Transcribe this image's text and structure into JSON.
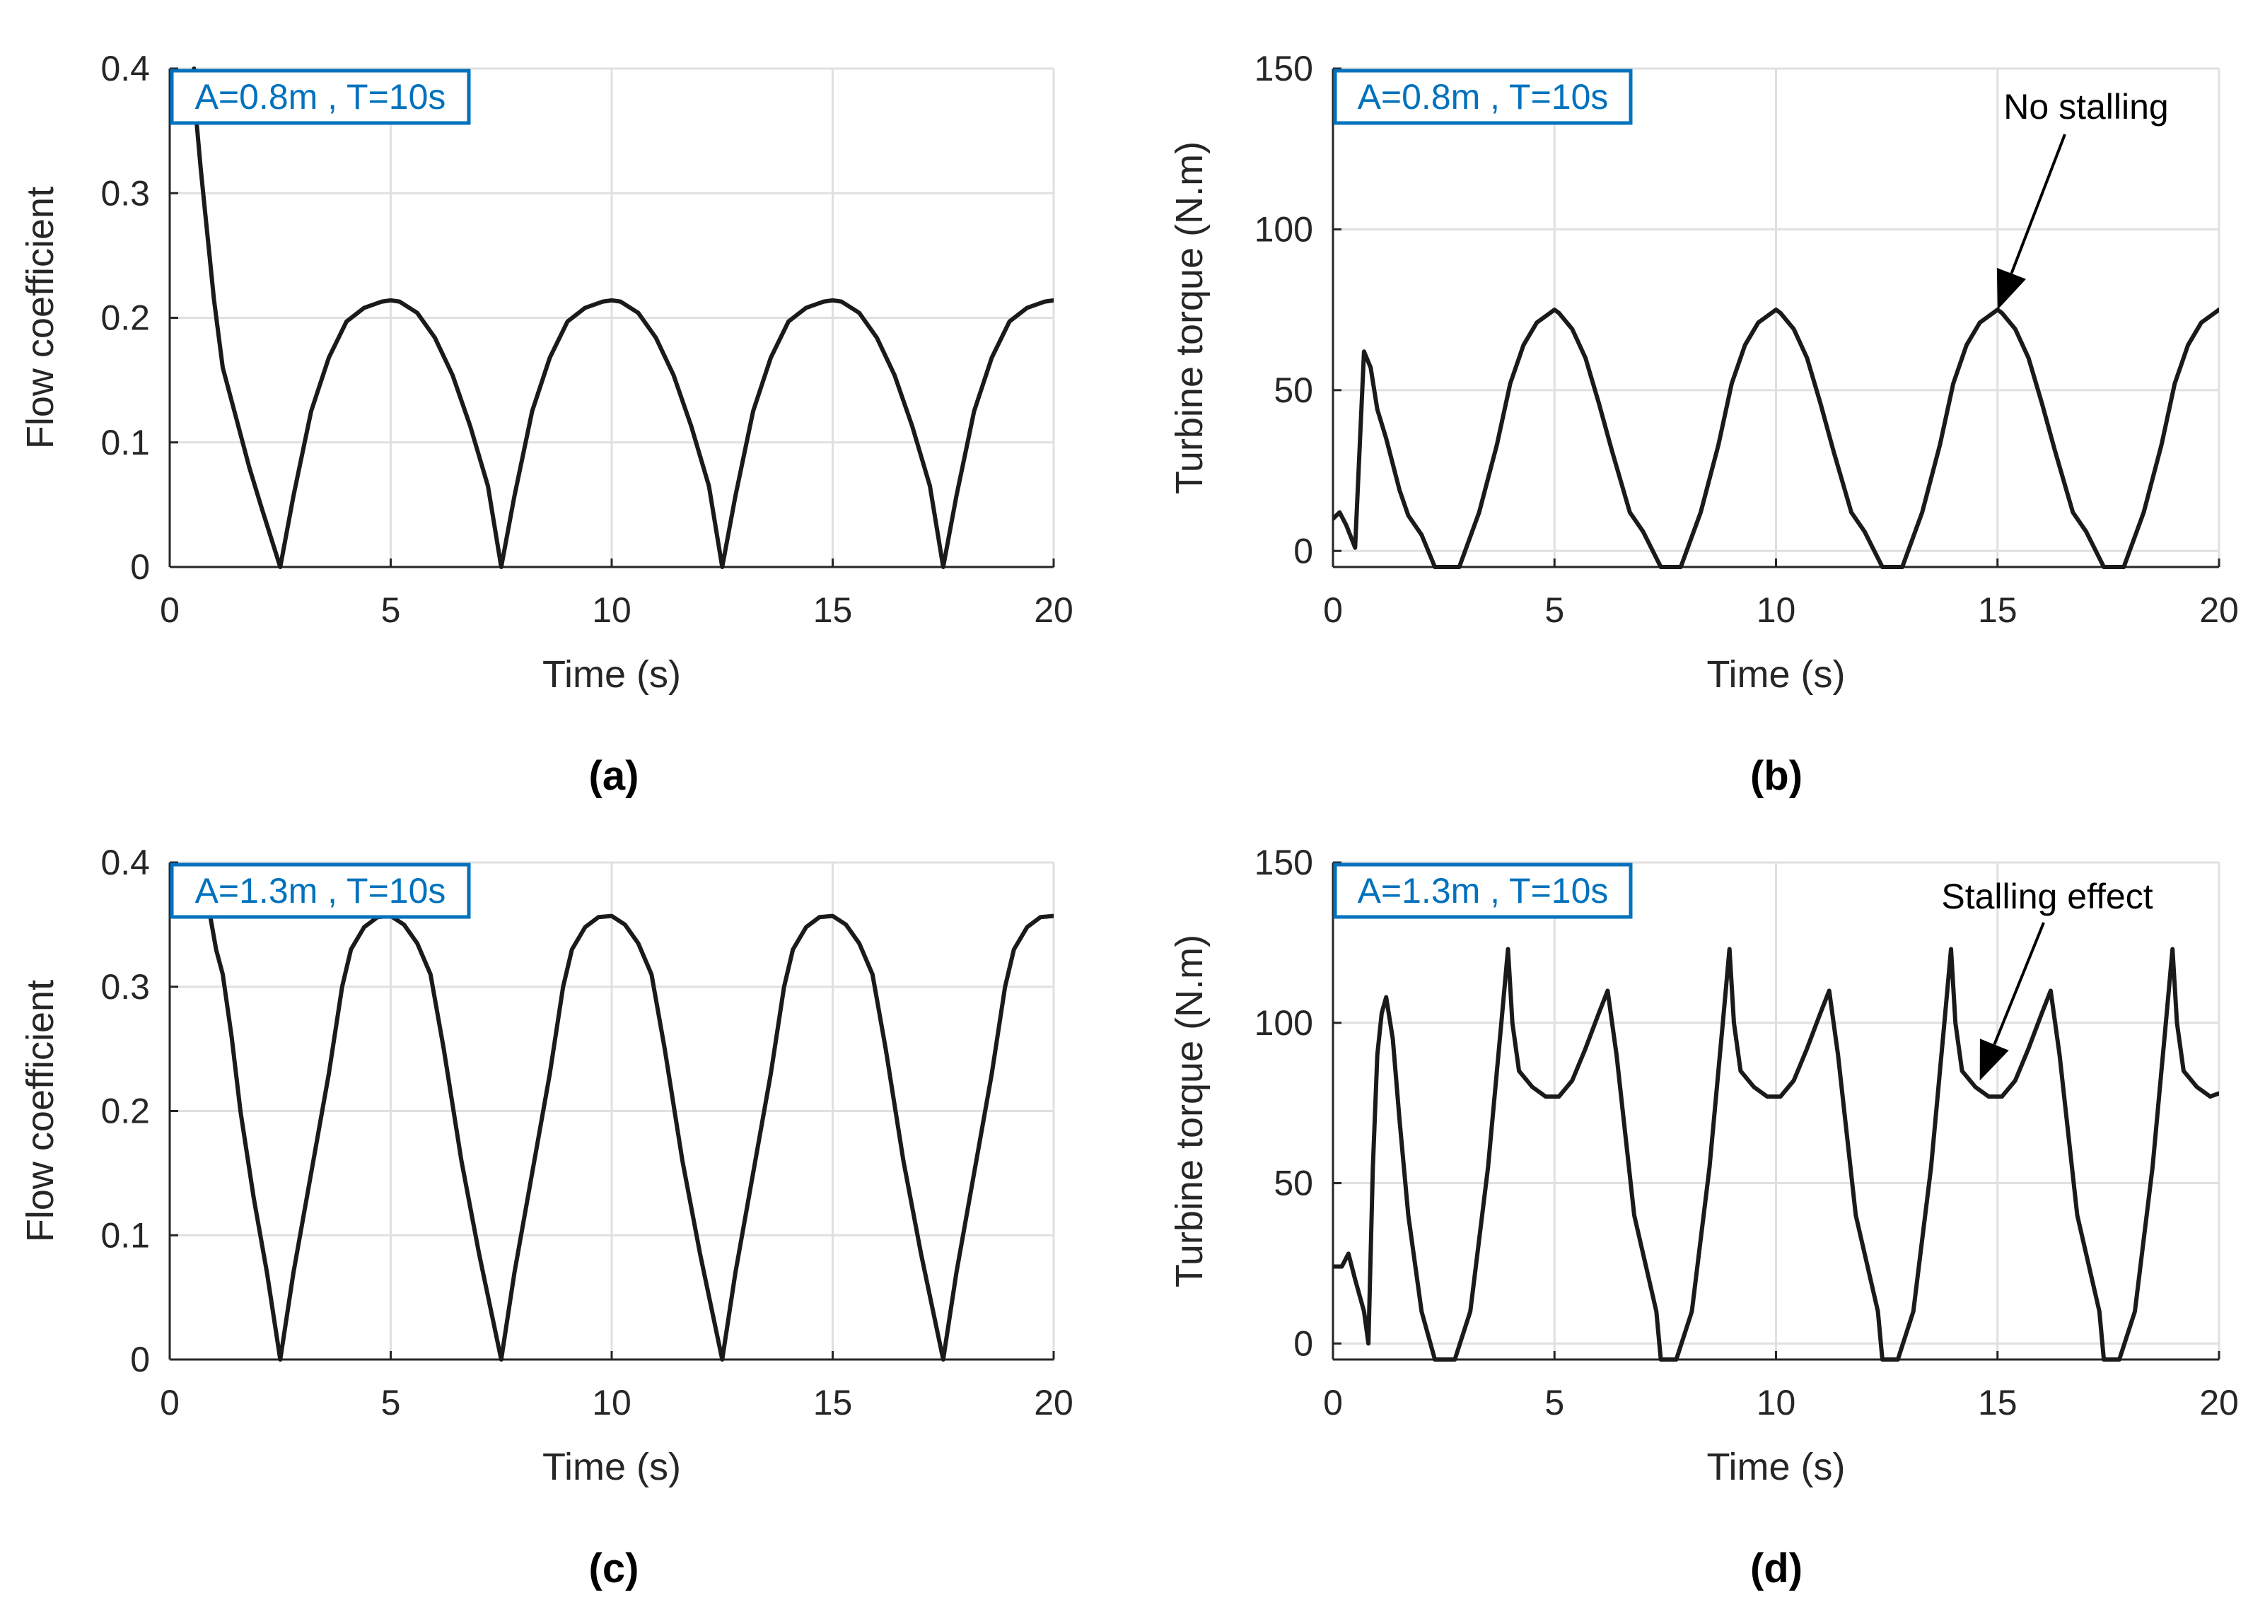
{
  "chart_data": [
    {
      "id": "a",
      "type": "line",
      "panel_label": "(a)",
      "annotation_box": "A=0.8m , T=10s",
      "xlabel": "Time (s)",
      "ylabel": "Flow coefficient",
      "xlim": [
        0,
        20
      ],
      "ylim": [
        0,
        0.4
      ],
      "xticks": [
        "0",
        "5",
        "10",
        "15",
        "20"
      ],
      "yticks": [
        "0",
        "0.1",
        "0.2",
        "0.3",
        "0.4"
      ],
      "colors": {
        "line": "#1a1a1a",
        "box": "#0072bd"
      },
      "series": [
        {
          "name": "Flow coefficient",
          "x": [
            0.55,
            0.6,
            0.7,
            0.8,
            0.9,
            1.0,
            1.2,
            1.5,
            1.8,
            2.1,
            2.5,
            2.8,
            3.2,
            3.6,
            4.0,
            4.4,
            4.8,
            5.0,
            5.2,
            5.6,
            6.0,
            6.4,
            6.8,
            7.2,
            7.5,
            7.8,
            8.2,
            8.6,
            9.0,
            9.4,
            9.8,
            10.0,
            10.2,
            10.6,
            11.0,
            11.4,
            11.8,
            12.2,
            12.5,
            12.8,
            13.2,
            13.6,
            14.0,
            14.4,
            14.8,
            15.0,
            15.2,
            15.6,
            16.0,
            16.4,
            16.8,
            17.2,
            17.5,
            17.8,
            18.2,
            18.6,
            19.0,
            19.4,
            19.8,
            20.0
          ],
          "y": [
            0.4,
            0.36,
            0.32,
            0.285,
            0.25,
            0.215,
            0.16,
            0.12,
            0.08,
            0.045,
            0.0,
            0.057,
            0.125,
            0.168,
            0.197,
            0.208,
            0.213,
            0.214,
            0.213,
            0.204,
            0.184,
            0.154,
            0.113,
            0.065,
            0.0,
            0.057,
            0.125,
            0.168,
            0.197,
            0.208,
            0.213,
            0.214,
            0.213,
            0.204,
            0.184,
            0.154,
            0.113,
            0.065,
            0.0,
            0.057,
            0.125,
            0.168,
            0.197,
            0.208,
            0.213,
            0.214,
            0.213,
            0.204,
            0.184,
            0.154,
            0.113,
            0.065,
            0.0,
            0.057,
            0.125,
            0.168,
            0.197,
            0.208,
            0.213,
            0.214
          ]
        }
      ]
    },
    {
      "id": "b",
      "type": "line",
      "panel_label": "(b)",
      "annotation_box": "A=0.8m , T=10s",
      "xlabel": "Time (s)",
      "ylabel": "Turbine torque (N.m)",
      "xlim": [
        0,
        20
      ],
      "ylim": [
        -5,
        150
      ],
      "xticks": [
        "0",
        "5",
        "10",
        "15",
        "20"
      ],
      "yticks": [
        "0",
        "50",
        "100",
        "150"
      ],
      "annotation_text": "No stalling",
      "annotation_point": [
        15,
        75
      ],
      "colors": {
        "line": "#1a1a1a",
        "box": "#0072bd"
      },
      "series": [
        {
          "name": "Turbine torque",
          "x": [
            0,
            0.15,
            0.3,
            0.5,
            0.7,
            0.85,
            1.0,
            1.2,
            1.5,
            1.7,
            2.0,
            2.3,
            2.4,
            2.75,
            2.85,
            3.3,
            3.7,
            4.0,
            4.3,
            4.6,
            4.9,
            5.0,
            5.1,
            5.4,
            5.7,
            6.0,
            6.3,
            6.7,
            7.0,
            7.4,
            7.6,
            7.75,
            7.85,
            8.3,
            8.7,
            9.0,
            9.3,
            9.6,
            9.9,
            10.0,
            10.1,
            10.4,
            10.7,
            11.0,
            11.3,
            11.7,
            12.0,
            12.4,
            12.6,
            12.75,
            12.85,
            13.3,
            13.7,
            14.0,
            14.3,
            14.6,
            14.9,
            15.0,
            15.1,
            15.4,
            15.7,
            16.0,
            16.3,
            16.7,
            17.0,
            17.4,
            17.6,
            17.75,
            17.85,
            18.3,
            18.7,
            19.0,
            19.3,
            19.6,
            19.9,
            20.0
          ],
          "y": [
            10,
            12,
            8,
            1,
            62,
            57,
            44,
            35,
            19,
            11,
            5,
            -5,
            -5,
            -5,
            -5,
            12,
            33,
            52,
            64,
            71,
            74,
            75,
            74,
            69,
            60,
            46,
            31,
            12,
            6,
            -5,
            -5,
            -5,
            -5,
            12,
            33,
            52,
            64,
            71,
            74,
            75,
            74,
            69,
            60,
            46,
            31,
            12,
            6,
            -5,
            -5,
            -5,
            -5,
            12,
            33,
            52,
            64,
            71,
            74,
            75,
            74,
            69,
            60,
            46,
            31,
            12,
            6,
            -5,
            -5,
            -5,
            -5,
            12,
            33,
            52,
            64,
            71,
            74,
            75
          ]
        }
      ]
    },
    {
      "id": "c",
      "type": "line",
      "panel_label": "(c)",
      "annotation_box": "A=1.3m , T=10s",
      "xlabel": "Time (s)",
      "ylabel": "Flow coefficient",
      "xlim": [
        0,
        20
      ],
      "ylim": [
        0,
        0.4
      ],
      "xticks": [
        "0",
        "5",
        "10",
        "15",
        "20"
      ],
      "yticks": [
        "0",
        "0.1",
        "0.2",
        "0.3",
        "0.4"
      ],
      "colors": {
        "line": "#1a1a1a",
        "box": "#0072bd"
      },
      "series": [
        {
          "name": "Flow coefficient",
          "x": [
            0.9,
            1.05,
            1.2,
            1.4,
            1.6,
            1.9,
            2.2,
            2.5,
            2.8,
            3.2,
            3.6,
            3.9,
            4.1,
            4.4,
            4.7,
            5.0,
            5.3,
            5.6,
            5.9,
            6.2,
            6.6,
            7.0,
            7.5,
            7.8,
            8.2,
            8.6,
            8.9,
            9.1,
            9.4,
            9.7,
            10.0,
            10.3,
            10.6,
            10.9,
            11.2,
            11.6,
            12.0,
            12.5,
            12.8,
            13.2,
            13.6,
            13.9,
            14.1,
            14.4,
            14.7,
            15.0,
            15.3,
            15.6,
            15.9,
            16.2,
            16.6,
            17.0,
            17.5,
            17.8,
            18.2,
            18.6,
            18.9,
            19.1,
            19.4,
            19.7,
            20.0
          ],
          "y": [
            0.36,
            0.33,
            0.31,
            0.26,
            0.2,
            0.13,
            0.07,
            0.0,
            0.07,
            0.15,
            0.23,
            0.3,
            0.33,
            0.348,
            0.356,
            0.357,
            0.35,
            0.335,
            0.31,
            0.25,
            0.16,
            0.085,
            0.0,
            0.07,
            0.15,
            0.23,
            0.3,
            0.33,
            0.348,
            0.356,
            0.357,
            0.35,
            0.335,
            0.31,
            0.25,
            0.16,
            0.085,
            0.0,
            0.07,
            0.15,
            0.23,
            0.3,
            0.33,
            0.348,
            0.356,
            0.357,
            0.35,
            0.335,
            0.31,
            0.25,
            0.16,
            0.085,
            0.0,
            0.07,
            0.15,
            0.23,
            0.3,
            0.33,
            0.348,
            0.356,
            0.357
          ]
        }
      ]
    },
    {
      "id": "d",
      "type": "line",
      "panel_label": "(d)",
      "annotation_box": "A=1.3m , T=10s",
      "xlabel": "Time (s)",
      "ylabel": "Turbine torque (N.m)",
      "xlim": [
        0,
        20
      ],
      "ylim": [
        -5,
        150
      ],
      "xticks": [
        "0",
        "5",
        "10",
        "15",
        "20"
      ],
      "yticks": [
        "0",
        "50",
        "100",
        "150"
      ],
      "annotation_text": "Stalling effect",
      "annotation_point": [
        14.6,
        82
      ],
      "colors": {
        "line": "#1a1a1a",
        "box": "#0072bd"
      },
      "series": [
        {
          "name": "Turbine torque",
          "x": [
            0,
            0.2,
            0.35,
            0.5,
            0.7,
            0.8,
            0.9,
            1.0,
            1.1,
            1.2,
            1.35,
            1.5,
            1.7,
            2.0,
            2.3,
            2.4,
            2.6,
            2.75,
            3.1,
            3.5,
            3.8,
            3.95,
            4.05,
            4.2,
            4.5,
            4.8,
            5.1,
            5.4,
            5.7,
            6.0,
            6.2,
            6.4,
            6.8,
            7.3,
            7.4,
            7.6,
            7.75,
            8.1,
            8.5,
            8.8,
            8.95,
            9.05,
            9.2,
            9.5,
            9.8,
            10.1,
            10.4,
            10.7,
            11.0,
            11.2,
            11.4,
            11.8,
            12.3,
            12.4,
            12.6,
            12.75,
            13.1,
            13.5,
            13.8,
            13.95,
            14.05,
            14.2,
            14.5,
            14.8,
            15.1,
            15.4,
            15.7,
            16.0,
            16.2,
            16.4,
            16.8,
            17.3,
            17.4,
            17.6,
            17.75,
            18.1,
            18.5,
            18.8,
            18.95,
            19.05,
            19.2,
            19.5,
            19.8,
            20.0
          ],
          "y": [
            24,
            24,
            28,
            20,
            10,
            0,
            55,
            90,
            103,
            108,
            95,
            70,
            40,
            10,
            -5,
            -5,
            -5,
            -5,
            10,
            55,
            100,
            123,
            100,
            85,
            80,
            77,
            77,
            82,
            92,
            103,
            110,
            90,
            40,
            10,
            -5,
            -5,
            -5,
            10,
            55,
            100,
            123,
            100,
            85,
            80,
            77,
            77,
            82,
            92,
            103,
            110,
            90,
            40,
            10,
            -5,
            -5,
            -5,
            10,
            55,
            100,
            123,
            100,
            85,
            80,
            77,
            77,
            82,
            92,
            103,
            110,
            90,
            40,
            10,
            -5,
            -5,
            -5,
            10,
            55,
            100,
            123,
            100,
            85,
            80,
            77,
            78
          ]
        }
      ]
    }
  ]
}
